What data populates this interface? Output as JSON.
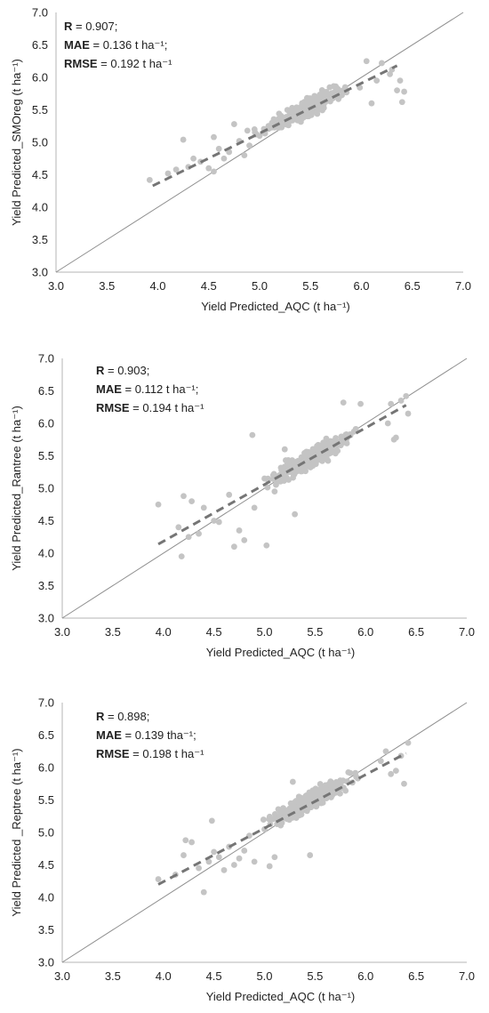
{
  "chart_data": [
    {
      "type": "scatter",
      "xlabel": "Yield Predicted_AQC (t ha⁻¹)",
      "ylabel": "Yield Predicted_SMOreg (t ha⁻¹)",
      "xlim": [
        3.0,
        7.0
      ],
      "ylim": [
        3.0,
        7.0
      ],
      "xticks": [
        "3.0",
        "3.5",
        "4.0",
        "4.5",
        "5.0",
        "5.5",
        "6.0",
        "6.5",
        "7.0"
      ],
      "yticks": [
        "3.0",
        "3.5",
        "4.0",
        "4.5",
        "5.0",
        "5.5",
        "6.0",
        "6.5",
        "7.0"
      ],
      "grid": false,
      "identity_line": true,
      "trendline": {
        "x": [
          3.95,
          6.35
        ],
        "y": [
          4.33,
          6.18
        ]
      },
      "stats": [
        {
          "key": "R",
          "value": " = 0.907;"
        },
        {
          "key": "MAE",
          "value": " = 0.136 t ha⁻¹;"
        },
        {
          "key": "RMSE",
          "value": " = 0.192 t ha⁻¹"
        }
      ],
      "center": [
        5.45,
        5.52
      ],
      "slope": 0.77,
      "spread": 0.12,
      "points": [
        [
          3.92,
          4.42
        ],
        [
          4.1,
          4.52
        ],
        [
          4.18,
          4.58
        ],
        [
          4.25,
          5.04
        ],
        [
          4.3,
          4.62
        ],
        [
          4.35,
          4.75
        ],
        [
          4.42,
          4.7
        ],
        [
          4.5,
          4.6
        ],
        [
          4.55,
          5.08
        ],
        [
          4.55,
          4.55
        ],
        [
          4.6,
          4.9
        ],
        [
          4.65,
          4.75
        ],
        [
          4.7,
          4.85
        ],
        [
          4.75,
          5.28
        ],
        [
          4.8,
          5.02
        ],
        [
          4.85,
          4.8
        ],
        [
          4.88,
          5.18
        ],
        [
          4.9,
          4.95
        ],
        [
          4.95,
          5.2
        ],
        [
          5.0,
          5.1
        ],
        [
          6.28,
          6.05
        ],
        [
          6.35,
          5.8
        ],
        [
          6.4,
          5.62
        ],
        [
          6.42,
          5.78
        ],
        [
          6.38,
          5.95
        ],
        [
          6.2,
          6.22
        ],
        [
          6.05,
          6.25
        ],
        [
          6.1,
          5.6
        ],
        [
          6.15,
          5.95
        ],
        [
          6.3,
          6.12
        ]
      ]
    },
    {
      "type": "scatter",
      "xlabel": "Yield Predicted_AQC (t ha⁻¹)",
      "ylabel": "Yield Predicted_Rantree (t ha⁻¹)",
      "xlim": [
        3.0,
        7.0
      ],
      "ylim": [
        3.0,
        7.0
      ],
      "xticks": [
        "3.0",
        "3.5",
        "4.0",
        "4.5",
        "5.0",
        "5.5",
        "6.0",
        "6.5",
        "7.0"
      ],
      "yticks": [
        "3.0",
        "3.5",
        "4.0",
        "4.5",
        "5.0",
        "5.5",
        "6.0",
        "6.5",
        "7.0"
      ],
      "grid": false,
      "identity_line": true,
      "trendline": {
        "x": [
          3.95,
          6.4
        ],
        "y": [
          4.14,
          6.28
        ]
      },
      "stats": [
        {
          "key": "R",
          "value": " = 0.903;"
        },
        {
          "key": "MAE",
          "value": " = 0.112 t ha⁻¹;"
        },
        {
          "key": "RMSE",
          "value": " = 0.194 t ha⁻¹"
        }
      ],
      "center": [
        5.45,
        5.45
      ],
      "slope": 0.87,
      "spread": 0.13,
      "points": [
        [
          3.95,
          4.75
        ],
        [
          4.15,
          4.4
        ],
        [
          4.18,
          3.95
        ],
        [
          4.2,
          4.88
        ],
        [
          4.25,
          4.25
        ],
        [
          4.28,
          4.8
        ],
        [
          4.35,
          4.3
        ],
        [
          4.4,
          4.7
        ],
        [
          4.5,
          4.5
        ],
        [
          4.55,
          4.48
        ],
        [
          4.65,
          4.9
        ],
        [
          4.7,
          4.1
        ],
        [
          4.75,
          4.35
        ],
        [
          4.8,
          4.2
        ],
        [
          4.88,
          5.82
        ],
        [
          4.9,
          4.7
        ],
        [
          5.0,
          5.15
        ],
        [
          5.02,
          4.12
        ],
        [
          5.1,
          4.95
        ],
        [
          5.3,
          4.6
        ],
        [
          5.2,
          5.6
        ],
        [
          5.78,
          6.32
        ],
        [
          5.95,
          6.3
        ],
        [
          6.22,
          6.0
        ],
        [
          6.28,
          5.75
        ],
        [
          6.3,
          5.78
        ],
        [
          6.35,
          6.35
        ],
        [
          6.4,
          6.42
        ],
        [
          6.42,
          6.15
        ],
        [
          6.25,
          6.3
        ]
      ]
    },
    {
      "type": "scatter",
      "xlabel": "Yield Predicted_AQC (t ha⁻¹)",
      "ylabel": "Yield Predicted _Reptree (t ha⁻¹)",
      "xlim": [
        3.0,
        7.0
      ],
      "ylim": [
        3.0,
        7.0
      ],
      "xticks": [
        "3.0",
        "3.5",
        "4.0",
        "4.5",
        "5.0",
        "5.5",
        "6.0",
        "6.5",
        "7.0"
      ],
      "yticks": [
        "3.0",
        "3.5",
        "4.0",
        "4.5",
        "5.0",
        "5.5",
        "6.0",
        "6.5",
        "7.0"
      ],
      "grid": false,
      "identity_line": true,
      "trendline": {
        "x": [
          3.95,
          6.4
        ],
        "y": [
          4.2,
          6.22
        ]
      },
      "stats": [
        {
          "key": "R",
          "value": " = 0.898;"
        },
        {
          "key": "MAE",
          "value": " = 0.139 tha⁻¹;"
        },
        {
          "key": "RMSE",
          "value": " = 0.198 t ha⁻¹"
        }
      ],
      "center": [
        5.45,
        5.48
      ],
      "slope": 0.82,
      "spread": 0.13,
      "points": [
        [
          3.95,
          4.28
        ],
        [
          4.12,
          4.35
        ],
        [
          4.2,
          4.65
        ],
        [
          4.22,
          4.88
        ],
        [
          4.28,
          4.85
        ],
        [
          4.35,
          4.45
        ],
        [
          4.4,
          4.08
        ],
        [
          4.45,
          4.55
        ],
        [
          4.48,
          5.18
        ],
        [
          4.5,
          4.7
        ],
        [
          4.55,
          4.62
        ],
        [
          4.6,
          4.42
        ],
        [
          4.65,
          4.78
        ],
        [
          4.7,
          4.5
        ],
        [
          4.75,
          4.6
        ],
        [
          4.8,
          4.72
        ],
        [
          4.85,
          4.95
        ],
        [
          4.9,
          4.55
        ],
        [
          5.0,
          5.05
        ],
        [
          5.05,
          4.48
        ],
        [
          5.1,
          4.62
        ],
        [
          5.28,
          5.78
        ],
        [
          5.45,
          4.65
        ],
        [
          6.15,
          6.1
        ],
        [
          6.25,
          5.9
        ],
        [
          6.3,
          5.95
        ],
        [
          6.35,
          6.18
        ],
        [
          6.42,
          6.38
        ],
        [
          6.38,
          5.75
        ],
        [
          6.2,
          6.25
        ]
      ]
    }
  ]
}
